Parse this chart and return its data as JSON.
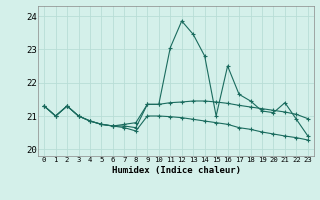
{
  "bg_color": "#d4f0ea",
  "grid_color": "#b8ddd6",
  "line_color": "#1a6b5e",
  "x_labels": [
    "0",
    "1",
    "2",
    "3",
    "4",
    "5",
    "6",
    "7",
    "8",
    "9",
    "10",
    "11",
    "12",
    "13",
    "14",
    "15",
    "16",
    "17",
    "18",
    "19",
    "20",
    "21",
    "22",
    "23"
  ],
  "xlabel": "Humidex (Indice chaleur)",
  "ylim": [
    19.8,
    24.3
  ],
  "yticks": [
    20,
    21,
    22,
    23,
    24
  ],
  "series1": [
    21.3,
    21.0,
    21.3,
    21.0,
    20.85,
    20.75,
    20.7,
    20.75,
    20.8,
    21.35,
    21.35,
    23.05,
    23.85,
    23.45,
    22.8,
    21.0,
    22.5,
    21.65,
    21.45,
    21.15,
    21.1,
    21.4,
    20.9,
    20.4
  ],
  "series2": [
    21.3,
    21.0,
    21.3,
    21.0,
    20.85,
    20.75,
    20.7,
    20.7,
    20.65,
    21.35,
    21.35,
    21.4,
    21.42,
    21.45,
    21.45,
    21.42,
    21.38,
    21.32,
    21.27,
    21.22,
    21.17,
    21.12,
    21.05,
    20.92
  ],
  "series3": [
    21.3,
    21.0,
    21.3,
    21.0,
    20.85,
    20.75,
    20.7,
    20.65,
    20.55,
    21.0,
    21.0,
    20.98,
    20.95,
    20.9,
    20.85,
    20.8,
    20.75,
    20.65,
    20.6,
    20.52,
    20.46,
    20.4,
    20.35,
    20.28
  ]
}
